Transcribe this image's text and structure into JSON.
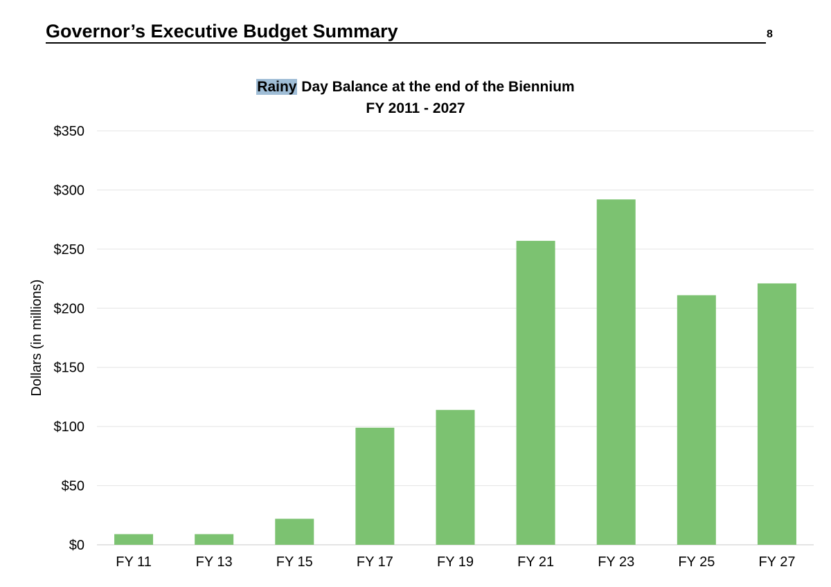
{
  "document": {
    "header_title": "Governor’s Executive Budget Summary",
    "page_number": "8"
  },
  "chart_data": {
    "type": "bar",
    "title_highlighted_word": "Rainy",
    "title_rest": " Day Balance at the end of the Biennium",
    "subtitle": "FY 2011 - 2027",
    "xlabel": "",
    "ylabel": "Dollars (in millions)",
    "categories": [
      "FY 11",
      "FY 13",
      "FY 15",
      "FY 17",
      "FY 19",
      "FY 21",
      "FY 23",
      "FY 25",
      "FY 27"
    ],
    "values": [
      9,
      9,
      22,
      99,
      114,
      257,
      292,
      211,
      221
    ],
    "ylim": [
      0,
      350
    ],
    "yticks": [
      0,
      50,
      100,
      150,
      200,
      250,
      300,
      350
    ],
    "ytick_labels": [
      "$0",
      "$50",
      "$100",
      "$150",
      "$200",
      "$250",
      "$300",
      "$350"
    ],
    "grid": true,
    "legend": "none",
    "bar_color": "#7cc271",
    "grid_color": "#e3e3e3"
  }
}
